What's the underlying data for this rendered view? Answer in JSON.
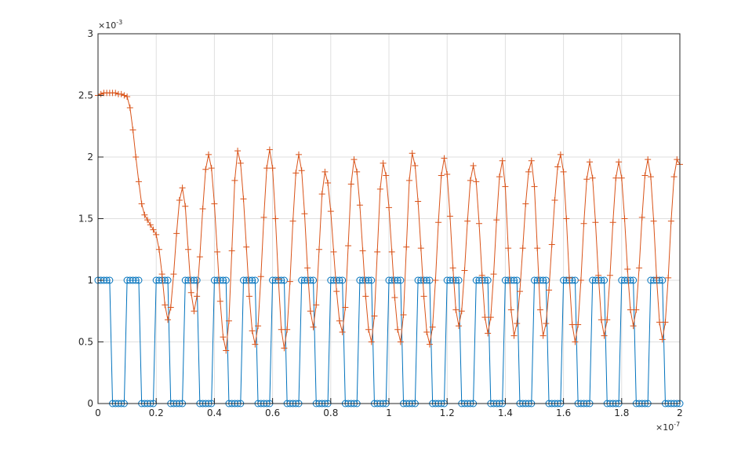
{
  "chart_data": {
    "type": "line",
    "x": [
      0,
      0.01,
      0.02,
      0.03,
      0.04,
      0.05,
      0.06,
      0.07,
      0.08,
      0.09,
      0.1,
      0.11,
      0.12,
      0.13,
      0.14,
      0.15,
      0.16,
      0.17,
      0.18,
      0.19,
      0.2,
      0.21,
      0.22,
      0.23,
      0.24,
      0.25,
      0.26,
      0.27,
      0.28,
      0.29,
      0.3,
      0.31,
      0.32,
      0.33,
      0.34,
      0.35,
      0.36,
      0.37,
      0.38,
      0.39,
      0.4,
      0.41,
      0.42,
      0.43,
      0.44,
      0.45,
      0.46,
      0.47,
      0.48,
      0.49,
      0.5,
      0.51,
      0.52,
      0.53,
      0.54,
      0.55,
      0.56,
      0.57,
      0.58,
      0.59,
      0.6,
      0.61,
      0.62,
      0.63,
      0.64,
      0.65,
      0.66,
      0.67,
      0.68,
      0.69,
      0.7,
      0.71,
      0.72,
      0.73,
      0.74,
      0.75,
      0.76,
      0.77,
      0.78,
      0.79,
      0.8,
      0.81,
      0.82,
      0.83,
      0.84,
      0.85,
      0.86,
      0.87,
      0.88,
      0.89,
      0.9,
      0.91,
      0.92,
      0.93,
      0.94,
      0.95,
      0.96,
      0.97,
      0.98,
      0.99,
      1,
      1.01,
      1.02,
      1.03,
      1.04,
      1.05,
      1.06,
      1.07,
      1.08,
      1.09,
      1.1,
      1.11,
      1.12,
      1.13,
      1.14,
      1.15,
      1.16,
      1.17,
      1.18,
      1.19,
      1.2,
      1.21,
      1.22,
      1.23,
      1.24,
      1.25,
      1.26,
      1.27,
      1.28,
      1.29,
      1.3,
      1.31,
      1.32,
      1.33,
      1.34,
      1.35,
      1.36,
      1.37,
      1.38,
      1.39,
      1.4,
      1.41,
      1.42,
      1.43,
      1.44,
      1.45,
      1.46,
      1.47,
      1.48,
      1.49,
      1.5,
      1.51,
      1.52,
      1.53,
      1.54,
      1.55,
      1.56,
      1.57,
      1.58,
      1.59,
      1.6,
      1.61,
      1.62,
      1.63,
      1.64,
      1.65,
      1.66,
      1.67,
      1.68,
      1.69,
      1.7,
      1.71,
      1.72,
      1.73,
      1.74,
      1.75,
      1.76,
      1.77,
      1.78,
      1.79,
      1.8,
      1.81,
      1.82,
      1.83,
      1.84,
      1.85,
      1.86,
      1.87,
      1.88,
      1.89,
      1.9,
      1.91,
      1.92,
      1.93,
      1.94,
      1.95,
      1.96,
      1.97,
      1.98,
      1.99,
      2
    ],
    "series": [
      {
        "color": "#0072BD",
        "marker": "circle",
        "values": [
          1,
          1,
          1,
          1,
          1,
          0,
          0,
          0,
          0,
          0,
          1,
          1,
          1,
          1,
          1,
          0,
          0,
          0,
          0,
          0,
          1,
          1,
          1,
          1,
          1,
          0,
          0,
          0,
          0,
          0,
          1,
          1,
          1,
          1,
          1,
          0,
          0,
          0,
          0,
          0,
          1,
          1,
          1,
          1,
          1,
          0,
          0,
          0,
          0,
          0,
          1,
          1,
          1,
          1,
          1,
          0,
          0,
          0,
          0,
          0,
          1,
          1,
          1,
          1,
          1,
          0,
          0,
          0,
          0,
          0,
          1,
          1,
          1,
          1,
          1,
          0,
          0,
          0,
          0,
          0,
          1,
          1,
          1,
          1,
          1,
          0,
          0,
          0,
          0,
          0,
          1,
          1,
          1,
          1,
          1,
          0,
          0,
          0,
          0,
          0,
          1,
          1,
          1,
          1,
          1,
          0,
          0,
          0,
          0,
          0,
          1,
          1,
          1,
          1,
          1,
          0,
          0,
          0,
          0,
          0,
          1,
          1,
          1,
          1,
          1,
          0,
          0,
          0,
          0,
          0,
          1,
          1,
          1,
          1,
          1,
          0,
          0,
          0,
          0,
          0,
          1,
          1,
          1,
          1,
          1,
          0,
          0,
          0,
          0,
          0,
          1,
          1,
          1,
          1,
          1,
          0,
          0,
          0,
          0,
          0,
          1,
          1,
          1,
          1,
          1,
          0,
          0,
          0,
          0,
          0,
          1,
          1,
          1,
          1,
          1,
          0,
          0,
          0,
          0,
          0,
          1,
          1,
          1,
          1,
          1,
          0,
          0,
          0,
          0,
          0,
          1,
          1,
          1,
          1,
          1,
          0,
          0,
          0,
          0,
          0,
          0
        ]
      },
      {
        "color": "#D95319",
        "marker": "plus",
        "values": [
          2.5,
          2.51,
          2.52,
          2.52,
          2.52,
          2.52,
          2.52,
          2.51,
          2.51,
          2.5,
          2.49,
          2.4,
          2.22,
          2.0,
          1.8,
          1.62,
          1.53,
          1.49,
          1.45,
          1.41,
          1.37,
          1.25,
          1.05,
          0.8,
          0.68,
          0.78,
          1.05,
          1.38,
          1.65,
          1.75,
          1.6,
          1.25,
          0.9,
          0.75,
          0.87,
          1.19,
          1.58,
          1.9,
          2.02,
          1.91,
          1.62,
          1.23,
          0.83,
          0.54,
          0.43,
          0.67,
          1.24,
          1.81,
          2.05,
          1.95,
          1.66,
          1.27,
          0.87,
          0.59,
          0.48,
          0.63,
          1.03,
          1.51,
          1.91,
          2.06,
          1.91,
          1.5,
          1.01,
          0.6,
          0.45,
          0.6,
          0.99,
          1.48,
          1.87,
          2.02,
          1.89,
          1.54,
          1.1,
          0.75,
          0.62,
          0.8,
          1.25,
          1.7,
          1.88,
          1.79,
          1.56,
          1.23,
          0.91,
          0.67,
          0.58,
          0.78,
          1.28,
          1.78,
          1.98,
          1.88,
          1.61,
          1.24,
          0.87,
          0.6,
          0.5,
          0.71,
          1.23,
          1.74,
          1.95,
          1.85,
          1.59,
          1.23,
          0.86,
          0.6,
          0.5,
          0.72,
          1.27,
          1.81,
          2.03,
          1.93,
          1.64,
          1.26,
          0.87,
          0.58,
          0.48,
          0.62,
          1.0,
          1.47,
          1.85,
          1.99,
          1.86,
          1.52,
          1.1,
          0.76,
          0.63,
          0.75,
          1.08,
          1.48,
          1.81,
          1.93,
          1.8,
          1.46,
          1.04,
          0.7,
          0.57,
          0.7,
          1.05,
          1.49,
          1.84,
          1.97,
          1.76,
          1.26,
          0.76,
          0.55,
          0.65,
          0.91,
          1.26,
          1.62,
          1.88,
          1.97,
          1.76,
          1.26,
          0.76,
          0.55,
          0.65,
          0.92,
          1.29,
          1.65,
          1.92,
          2.02,
          1.88,
          1.5,
          1.02,
          0.64,
          0.5,
          0.64,
          1.0,
          1.46,
          1.82,
          1.96,
          1.83,
          1.47,
          1.04,
          0.68,
          0.55,
          0.68,
          1.04,
          1.47,
          1.83,
          1.96,
          1.83,
          1.5,
          1.09,
          0.76,
          0.63,
          0.76,
          1.1,
          1.51,
          1.85,
          1.98,
          1.84,
          1.48,
          1.02,
          0.66,
          0.52,
          0.66,
          1.02,
          1.48,
          1.84,
          1.98,
          1.94
        ]
      }
    ],
    "xlim": [
      0,
      2
    ],
    "xticks": [
      0,
      0.2,
      0.4,
      0.6,
      0.8,
      1,
      1.2,
      1.4,
      1.6,
      1.8,
      2
    ],
    "ylim": [
      0,
      3
    ],
    "yticks": [
      0,
      0.5,
      1,
      1.5,
      2,
      2.5,
      3
    ],
    "x_exponent": {
      "base": "×10",
      "power": "-7"
    },
    "y_exponent": {
      "base": "×10",
      "power": "-3"
    },
    "grid": true
  }
}
